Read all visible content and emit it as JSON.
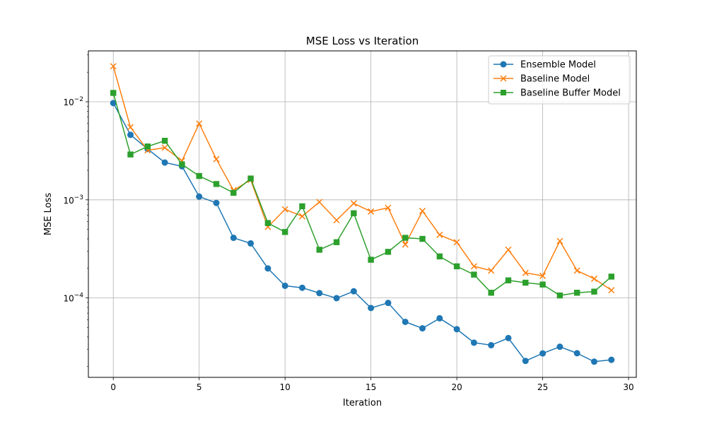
{
  "chart_data": {
    "type": "line",
    "title": "MSE Loss vs Iteration",
    "xlabel": "Iteration",
    "ylabel": "MSE Loss",
    "xlim": [
      -1.45,
      30.45
    ],
    "ylim": [
      1.55e-05,
      0.033
    ],
    "yscale": "log",
    "grid": true,
    "legend_position": "top-right",
    "xticks": [
      0,
      5,
      10,
      15,
      20,
      25,
      30
    ],
    "xtick_labels": [
      "0",
      "5",
      "10",
      "15",
      "20",
      "25",
      "30"
    ],
    "yticks": [
      0.01,
      0.001,
      0.0001
    ],
    "ytick_labels": [
      {
        "base": "10",
        "exp": "−2"
      },
      {
        "base": "10",
        "exp": "−3"
      },
      {
        "base": "10",
        "exp": "−4"
      }
    ],
    "x": [
      0,
      1,
      2,
      3,
      4,
      5,
      6,
      7,
      8,
      9,
      10,
      11,
      12,
      13,
      14,
      15,
      16,
      17,
      18,
      19,
      20,
      21,
      22,
      23,
      24,
      25,
      26,
      27,
      28,
      29
    ],
    "series": [
      {
        "name": "Ensemble Model",
        "color": "#1f77b4",
        "marker": "circle",
        "values": [
          0.0097,
          0.0046,
          0.0033,
          0.0024,
          0.0022,
          0.00108,
          0.00093,
          0.00041,
          0.00036,
          0.0002,
          0.000133,
          0.000127,
          0.000112,
          9.95e-05,
          0.000117,
          7.9e-05,
          8.9e-05,
          5.7e-05,
          4.9e-05,
          6.2e-05,
          4.8e-05,
          3.5e-05,
          3.3e-05,
          3.9e-05,
          2.28e-05,
          2.72e-05,
          3.18e-05,
          2.73e-05,
          2.24e-05,
          2.34e-05
        ]
      },
      {
        "name": "Baseline Model",
        "color": "#ff7f0e",
        "marker": "x",
        "values": [
          0.023,
          0.0055,
          0.0032,
          0.0034,
          0.0025,
          0.006,
          0.0026,
          0.00125,
          0.0016,
          0.00053,
          0.0008,
          0.00068,
          0.00095,
          0.00062,
          0.00092,
          0.00076,
          0.00083,
          0.00035,
          0.00077,
          0.00044,
          0.00037,
          0.00021,
          0.00019,
          0.00031,
          0.00018,
          0.000168,
          0.00038,
          0.00019,
          0.000157,
          0.00012
        ]
      },
      {
        "name": "Baseline Buffer Model",
        "color": "#2ca02c",
        "marker": "square",
        "values": [
          0.0123,
          0.0029,
          0.0035,
          0.004,
          0.0023,
          0.00175,
          0.00145,
          0.00118,
          0.00165,
          0.00058,
          0.00047,
          0.00086,
          0.00031,
          0.00037,
          0.00073,
          0.000245,
          0.000295,
          0.00041,
          0.0004,
          0.000265,
          0.00021,
          0.000173,
          0.000113,
          0.000151,
          0.000143,
          0.000137,
          0.000106,
          0.000113,
          0.000116,
          0.000165
        ]
      }
    ]
  }
}
